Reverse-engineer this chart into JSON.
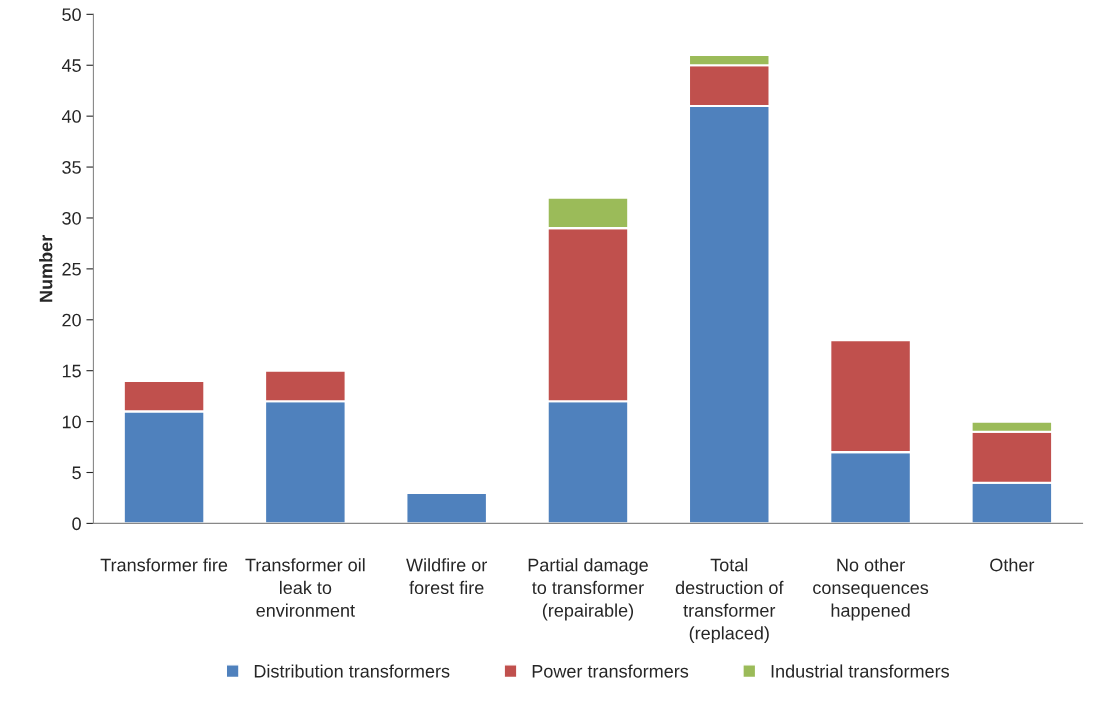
{
  "chart_data": {
    "type": "bar",
    "stacked": true,
    "ylabel": "Number",
    "categories": [
      "Transformer fire",
      "Transformer oil leak to environment",
      "Wildfire or forest fire",
      "Partial damage to transformer (repairable)",
      "Total destruction of transformer (replaced)",
      "No other consequences happened",
      "Other"
    ],
    "series": [
      {
        "name": "Distribution transformers",
        "color": "#4f81bd",
        "values": [
          11,
          12,
          3,
          12,
          41,
          7,
          4
        ]
      },
      {
        "name": "Power transformers",
        "color": "#c0504d",
        "values": [
          3,
          3,
          null,
          17,
          4,
          11,
          5
        ]
      },
      {
        "name": "Industrial transformers",
        "color": "#9bbb59",
        "values": [
          null,
          null,
          null,
          3,
          1,
          null,
          1
        ]
      }
    ],
    "ylim": [
      0,
      50
    ],
    "yticks": [
      0,
      5,
      10,
      15,
      20,
      25,
      30,
      35,
      40,
      45,
      50
    ],
    "grid": false,
    "legend": "bottom"
  }
}
